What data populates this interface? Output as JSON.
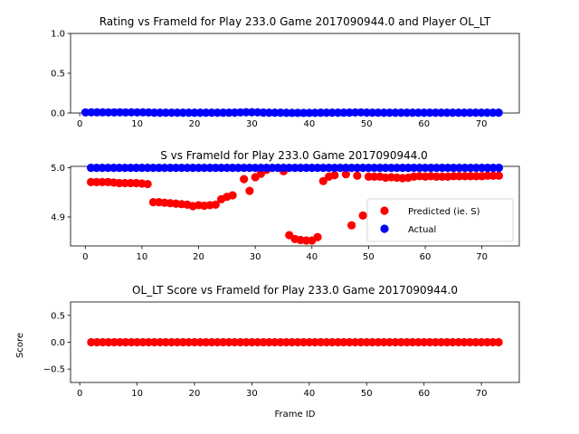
{
  "chart_data": [
    {
      "type": "scatter",
      "title": "Rating vs FrameId for Play 233.0 Game 2017090944.0 and Player OL_LT",
      "xlabel": "",
      "ylabel": "",
      "xlim": [
        -1.6,
        76.6
      ],
      "ylim": [
        0,
        1
      ],
      "xticks": [
        0,
        10,
        20,
        30,
        40,
        50,
        60,
        70
      ],
      "yticks": [
        0.0,
        0.5,
        1.0
      ],
      "ytick_labels": [
        "0.0",
        "0.5",
        "1.0"
      ],
      "legend": null,
      "series": [
        {
          "color": "#0000ff",
          "x": [
            1,
            2,
            3,
            4,
            5,
            6,
            7,
            8,
            9,
            10,
            11,
            12,
            13,
            14,
            15,
            16,
            17,
            18,
            19,
            20,
            21,
            22,
            23,
            24,
            25,
            26,
            27,
            28,
            29,
            30,
            31,
            32,
            33,
            34,
            35,
            36,
            37,
            38,
            39,
            40,
            41,
            42,
            43,
            44,
            45,
            46,
            47,
            48,
            49,
            50,
            51,
            52,
            53,
            54,
            55,
            56,
            57,
            58,
            59,
            60,
            61,
            62,
            63,
            64,
            65,
            66,
            67,
            68,
            69,
            70,
            71,
            72,
            73
          ],
          "y": [
            0.008,
            0.009,
            0.009,
            0.009,
            0.008,
            0.008,
            0.009,
            0.008,
            0.009,
            0.008,
            0.009,
            0.007,
            0.005,
            0.004,
            0.004,
            0.004,
            0.004,
            0.004,
            0.004,
            0.004,
            0.004,
            0.004,
            0.004,
            0.004,
            0.004,
            0.005,
            0.006,
            0.008,
            0.01,
            0.01,
            0.009,
            0.006,
            0.004,
            0.004,
            0.004,
            0.003,
            0.002,
            0.002,
            0.002,
            0.002,
            0.003,
            0.004,
            0.004,
            0.004,
            0.004,
            0.005,
            0.006,
            0.007,
            0.008,
            0.006,
            0.005,
            0.004,
            0.004,
            0.004,
            0.004,
            0.004,
            0.004,
            0.004,
            0.004,
            0.004,
            0.004,
            0.004,
            0.004,
            0.004,
            0.004,
            0.004,
            0.004,
            0.004,
            0.004,
            0.004,
            0.004,
            0.004,
            0.004
          ]
        }
      ]
    },
    {
      "type": "scatter",
      "title": "S vs FrameId for Play 233.0 Game 2017090944.0",
      "xlabel": "",
      "ylabel": "",
      "xlim": [
        -2.6,
        76.6
      ],
      "ylim": [
        4.841,
        5.003
      ],
      "xticks": [
        0,
        10,
        20,
        30,
        40,
        50,
        60,
        70
      ],
      "yticks": [
        4.9,
        5.0
      ],
      "ytick_labels": [
        "4.9",
        "5.0"
      ],
      "legend": "right",
      "series": [
        {
          "name": "Predicted (ie. S)",
          "color": "#ff0000",
          "x": [
            1,
            2,
            3,
            4,
            5,
            6,
            7,
            8,
            9,
            10,
            11,
            12,
            13,
            14,
            15,
            16,
            17,
            18,
            19,
            20,
            21,
            22,
            23,
            24,
            25,
            26,
            28,
            29,
            30,
            31,
            32,
            35,
            36,
            37,
            38,
            39,
            40,
            41,
            42,
            43,
            44,
            46,
            47,
            48,
            49,
            50,
            51,
            52,
            53,
            54,
            55,
            56,
            57,
            58,
            59,
            60,
            61,
            62,
            63,
            64,
            65,
            66,
            67,
            68,
            69,
            70,
            71,
            72,
            73
          ],
          "y": [
            4.971,
            4.971,
            4.971,
            4.971,
            4.97,
            4.969,
            4.969,
            4.969,
            4.969,
            4.968,
            4.967,
            4.93,
            4.93,
            4.929,
            4.928,
            4.927,
            4.926,
            4.925,
            4.922,
            4.924,
            4.923,
            4.924,
            4.925,
            4.936,
            4.941,
            4.944,
            4.977,
            4.953,
            4.981,
            4.988,
            4.996,
            4.993,
            4.863,
            4.855,
            4.853,
            4.852,
            4.852,
            4.859,
            4.973,
            4.982,
            4.985,
            4.987,
            4.883,
            4.984,
            4.903,
            4.982,
            4.982,
            4.982,
            4.98,
            4.981,
            4.98,
            4.979,
            4.98,
            4.982,
            4.983,
            4.982,
            4.983,
            4.982,
            4.982,
            4.982,
            4.983,
            4.983,
            4.983,
            4.983,
            4.983,
            4.983,
            4.984,
            4.984,
            4.984
          ]
        },
        {
          "name": "Actual",
          "color": "#0000ff",
          "x": [
            1,
            2,
            3,
            4,
            5,
            6,
            7,
            8,
            9,
            10,
            11,
            12,
            13,
            14,
            15,
            16,
            17,
            18,
            19,
            20,
            21,
            22,
            23,
            24,
            25,
            26,
            27,
            28,
            29,
            30,
            31,
            32,
            33,
            34,
            35,
            36,
            37,
            38,
            39,
            40,
            41,
            42,
            43,
            44,
            45,
            46,
            47,
            48,
            49,
            50,
            51,
            52,
            53,
            54,
            55,
            56,
            57,
            58,
            59,
            60,
            61,
            62,
            63,
            64,
            65,
            66,
            67,
            68,
            69,
            70,
            71,
            72,
            73
          ],
          "y": [
            5.0,
            5.0,
            5.0,
            5.0,
            5.0,
            5.0,
            5.0,
            5.0,
            5.0,
            5.0,
            5.0,
            5.0,
            5.0,
            5.0,
            5.0,
            5.0,
            5.0,
            5.0,
            5.0,
            5.0,
            5.0,
            5.0,
            5.0,
            5.0,
            5.0,
            5.0,
            5.0,
            5.0,
            5.0,
            5.0,
            5.0,
            5.0,
            5.0,
            5.0,
            5.0,
            5.0,
            5.0,
            5.0,
            5.0,
            5.0,
            5.0,
            5.0,
            5.0,
            5.0,
            5.0,
            5.0,
            5.0,
            5.0,
            5.0,
            5.0,
            5.0,
            5.0,
            5.0,
            5.0,
            5.0,
            5.0,
            5.0,
            5.0,
            5.0,
            5.0,
            5.0,
            5.0,
            5.0,
            5.0,
            5.0,
            5.0,
            5.0,
            5.0,
            5.0,
            5.0,
            5.0,
            5.0,
            5.0
          ]
        }
      ]
    },
    {
      "type": "scatter",
      "title": "OL_LT Score vs FrameId for Play 233.0 Game 2017090944.0",
      "xlabel": "Frame ID",
      "ylabel": "Score",
      "xlim": [
        -1.6,
        76.6
      ],
      "ylim": [
        -0.75,
        0.75
      ],
      "xticks": [
        0,
        10,
        20,
        30,
        40,
        50,
        60,
        70
      ],
      "yticks": [
        -0.5,
        0.0,
        0.5
      ],
      "ytick_labels": [
        "−0.5",
        "0.0",
        "0.5"
      ],
      "legend": null,
      "series": [
        {
          "color": "#ff0000",
          "x": [
            2,
            3,
            4,
            5,
            6,
            7,
            8,
            9,
            10,
            11,
            12,
            13,
            14,
            15,
            16,
            17,
            18,
            19,
            20,
            21,
            22,
            23,
            24,
            25,
            26,
            27,
            28,
            29,
            30,
            31,
            32,
            33,
            34,
            35,
            36,
            37,
            38,
            39,
            40,
            41,
            42,
            43,
            44,
            45,
            46,
            47,
            48,
            49,
            50,
            51,
            52,
            53,
            54,
            55,
            56,
            57,
            58,
            59,
            60,
            61,
            62,
            63,
            64,
            65,
            66,
            67,
            68,
            69,
            70,
            71,
            72,
            73
          ],
          "y": [
            0,
            0,
            0,
            0,
            0,
            0,
            0,
            0,
            0,
            0,
            0,
            0,
            0,
            0,
            0,
            0,
            0,
            0,
            0,
            0,
            0,
            0,
            0,
            0,
            0,
            0,
            0,
            0,
            0,
            0,
            0,
            0,
            0,
            0,
            0,
            0,
            0,
            0,
            0,
            0,
            0,
            0,
            0,
            0,
            0,
            0,
            0,
            0,
            0,
            0,
            0,
            0,
            0,
            0,
            0,
            0,
            0,
            0,
            0,
            0,
            0,
            0,
            0,
            0,
            0,
            0,
            0,
            0,
            0,
            0,
            0,
            0
          ]
        }
      ]
    }
  ]
}
